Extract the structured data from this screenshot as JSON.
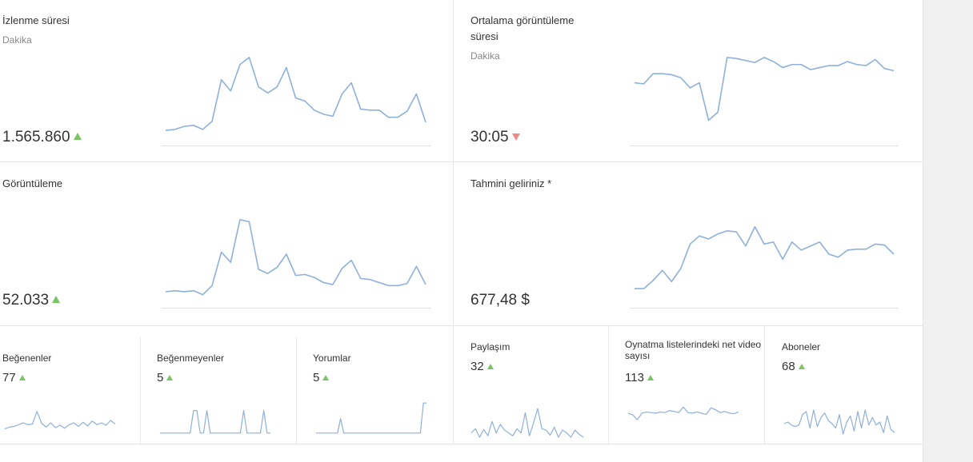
{
  "metrics": {
    "watch_time": {
      "title": "İzlenme süresi",
      "subtitle": "Dakika",
      "value": "1.565.860",
      "trend": "up"
    },
    "avg_view_duration": {
      "title": "Ortalama görüntüleme süresi",
      "subtitle": "Dakika",
      "value": "30:05",
      "trend": "down"
    },
    "views": {
      "title": "Görüntüleme",
      "value": "52.033",
      "trend": "up"
    },
    "estimated_revenue": {
      "title": "Tahmini geliriniz *",
      "value": "677,48 $"
    },
    "likes": {
      "title": "Beğenenler",
      "value": "77",
      "trend": "up"
    },
    "dislikes": {
      "title": "Beğenmeyenler",
      "value": "5",
      "trend": "up"
    },
    "comments": {
      "title": "Yorumlar",
      "value": "5",
      "trend": "up"
    },
    "shares": {
      "title": "Paylaşım",
      "value": "32",
      "trend": "up"
    },
    "playlist_net": {
      "title": "Oynatma listelerindeki net video sayısı",
      "value": "113",
      "trend": "up"
    },
    "subscribers": {
      "title": "Aboneler",
      "value": "68",
      "trend": "up"
    }
  },
  "colors": {
    "spark_line": "#8fb0db",
    "trend_up": "#7bc464",
    "trend_down": "#f08a8a",
    "divider": "#e5e5e5",
    "gutter": "#f1f1f1"
  },
  "sparklines": {
    "watch_time": [
      0.12,
      0.13,
      0.16,
      0.17,
      0.13,
      0.21,
      0.62,
      0.51,
      0.77,
      0.84,
      0.55,
      0.49,
      0.55,
      0.74,
      0.44,
      0.41,
      0.32,
      0.28,
      0.26,
      0.48,
      0.59,
      0.33,
      0.32,
      0.32,
      0.25,
      0.25,
      0.31,
      0.48,
      0.2
    ],
    "avg_view_duration": [
      0.59,
      0.58,
      0.68,
      0.68,
      0.67,
      0.64,
      0.54,
      0.59,
      0.22,
      0.3,
      0.84,
      0.83,
      0.81,
      0.79,
      0.84,
      0.8,
      0.74,
      0.77,
      0.77,
      0.72,
      0.74,
      0.76,
      0.76,
      0.8,
      0.77,
      0.76,
      0.82,
      0.73,
      0.71
    ],
    "views": [
      0.13,
      0.14,
      0.13,
      0.14,
      0.1,
      0.19,
      0.52,
      0.42,
      0.84,
      0.82,
      0.35,
      0.31,
      0.37,
      0.5,
      0.29,
      0.3,
      0.27,
      0.22,
      0.2,
      0.36,
      0.44,
      0.26,
      0.25,
      0.22,
      0.19,
      0.19,
      0.21,
      0.38,
      0.2
    ],
    "estimated_revenue": [
      0.16,
      0.16,
      0.24,
      0.34,
      0.23,
      0.36,
      0.6,
      0.68,
      0.65,
      0.7,
      0.73,
      0.72,
      0.58,
      0.77,
      0.6,
      0.62,
      0.45,
      0.62,
      0.54,
      0.58,
      0.62,
      0.5,
      0.47,
      0.54,
      0.55,
      0.55,
      0.6,
      0.59,
      0.5
    ],
    "likes": [
      0.14,
      0.2,
      0.22,
      0.28,
      0.34,
      0.28,
      0.3,
      0.72,
      0.32,
      0.2,
      0.34,
      0.18,
      0.26,
      0.16,
      0.28,
      0.34,
      0.22,
      0.36,
      0.24,
      0.4,
      0.28,
      0.34,
      0.26,
      0.42,
      0.3
    ],
    "dislikes": [
      0,
      0,
      0,
      0,
      0,
      0,
      0,
      0,
      0,
      0,
      0.75,
      0.75,
      0,
      0,
      0.75,
      0,
      0,
      0,
      0,
      0,
      0,
      0,
      0,
      0,
      0,
      0.75,
      0,
      0,
      0,
      0,
      0,
      0.75,
      0,
      0
    ],
    "comments": [
      0,
      0,
      0,
      0,
      0,
      0,
      0,
      0,
      0.75,
      0,
      0,
      0,
      0,
      0,
      0,
      0,
      0,
      0,
      0,
      0,
      0,
      0,
      0,
      0,
      0,
      0,
      0,
      0,
      0,
      0,
      0,
      0,
      0,
      0,
      0,
      1.55,
      1.55
    ],
    "shares": [
      0.2,
      0.35,
      0.05,
      0.32,
      0.1,
      0.6,
      0.2,
      0.5,
      0.3,
      0.2,
      0.1,
      0.35,
      0.2,
      0.9,
      0.1,
      0.55,
      1.05,
      0.35,
      0.3,
      0.12,
      0.4,
      0.05,
      0.3,
      0.2,
      0.05,
      0.3,
      0.15,
      0.05
    ],
    "playlist_net": [
      0.85,
      0.8,
      0.62,
      0.86,
      0.9,
      0.88,
      0.86,
      0.9,
      0.88,
      0.95,
      0.92,
      0.88,
      1.08,
      0.88,
      0.86,
      0.9,
      0.85,
      0.82,
      1.05,
      0.98,
      0.88,
      0.92,
      0.86,
      0.84,
      0.9
    ],
    "subscribers": [
      0.45,
      0.5,
      0.4,
      0.35,
      0.4,
      0.75,
      0.85,
      0.3,
      0.9,
      0.35,
      0.65,
      0.8,
      0.55,
      0.45,
      0.3,
      0.75,
      0.1,
      0.5,
      0.7,
      0.2,
      0.85,
      0.3,
      0.9,
      0.4,
      0.65,
      0.4,
      0.5,
      0.15,
      0.7,
      0.25,
      0.15
    ]
  }
}
